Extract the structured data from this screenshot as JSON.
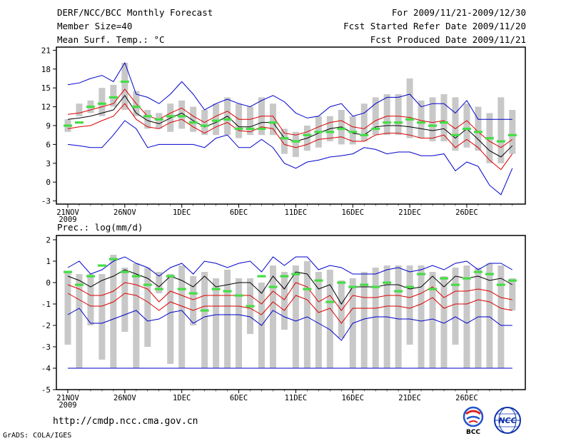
{
  "header": {
    "title": "DERF/NCC/BCC Monthly Forecast",
    "member_size": "Member Size=40",
    "variable": "Mean Surf. Temp.: °C",
    "period": "For 2009/11/21-2009/12/30",
    "fcst_started": "Fcst Started Refer Date 2009/11/20",
    "fcst_produced": "Fcst Produced Date 2009/11/21"
  },
  "footer": {
    "url": "http://cmdp.ncc.cma.gov.cn",
    "credit": "GrADS: COLA/IGES",
    "logo_left_text": "BCC",
    "logo_right_text": "NCC"
  },
  "colors": {
    "max_line": "#0000cc",
    "min_line": "#0000cc",
    "spread_line": "#dd0000",
    "mean_line": "#000000",
    "bar": "#c8c8c8",
    "marker": "#44dd44",
    "axis": "#000000",
    "threshold_line": "#0000cc"
  },
  "chart_data": [
    {
      "type": "line",
      "panel": "temperature",
      "title": "Mean Surf. Temp.: °C",
      "xlabel": "",
      "ylabel": "°C",
      "ylim": [
        -3.5,
        21.5
      ],
      "yticks": [
        -3,
        0,
        3,
        6,
        9,
        12,
        15,
        18,
        21
      ],
      "xticks": [
        {
          "day": 1,
          "label": "21NOV",
          "sublabel": "2009"
        },
        {
          "day": 6,
          "label": "26NOV"
        },
        {
          "day": 11,
          "label": "1DEC"
        },
        {
          "day": 16,
          "label": "6DEC"
        },
        {
          "day": 21,
          "label": "11DEC"
        },
        {
          "day": 26,
          "label": "16DEC"
        },
        {
          "day": 31,
          "label": "21DEC"
        },
        {
          "day": 36,
          "label": "26DEC"
        }
      ],
      "days": [
        1,
        2,
        3,
        4,
        5,
        6,
        7,
        8,
        9,
        10,
        11,
        12,
        13,
        14,
        15,
        16,
        17,
        18,
        19,
        20,
        21,
        22,
        23,
        24,
        25,
        26,
        27,
        28,
        29,
        30,
        31,
        32,
        33,
        34,
        35,
        36,
        37,
        38,
        39,
        40
      ],
      "series": [
        {
          "name": "max",
          "values": [
            15.5,
            15.8,
            16.5,
            17.0,
            16.0,
            19.0,
            14.0,
            13.5,
            12.5,
            14.0,
            16.0,
            14.0,
            11.5,
            12.5,
            13.2,
            12.5,
            12.0,
            13.0,
            13.8,
            12.8,
            11.0,
            10.2,
            10.5,
            12.0,
            12.5,
            10.5,
            11.0,
            12.5,
            13.5,
            13.5,
            14.0,
            12.0,
            12.5,
            12.5,
            11.0,
            13.0,
            10.0,
            10.0,
            10.0,
            10.0
          ]
        },
        {
          "name": "upper",
          "values": [
            10.8,
            11.0,
            11.5,
            12.0,
            12.5,
            14.8,
            12.5,
            10.5,
            10.0,
            11.0,
            11.8,
            10.5,
            9.5,
            10.5,
            11.3,
            10.0,
            10.0,
            10.5,
            10.5,
            7.8,
            7.5,
            8.0,
            8.8,
            9.5,
            9.8,
            8.8,
            8.5,
            9.8,
            10.5,
            10.5,
            10.3,
            9.8,
            9.5,
            9.8,
            8.5,
            9.8,
            8.0,
            6.5,
            5.5,
            6.8
          ]
        },
        {
          "name": "mean",
          "values": [
            10.0,
            10.2,
            10.5,
            11.0,
            11.5,
            13.8,
            11.0,
            9.8,
            9.3,
            10.2,
            11.0,
            9.8,
            8.8,
            9.5,
            10.5,
            8.8,
            8.8,
            9.5,
            9.5,
            7.0,
            6.5,
            7.0,
            7.8,
            8.5,
            8.8,
            7.8,
            7.5,
            8.8,
            9.0,
            9.0,
            8.8,
            8.5,
            8.2,
            8.5,
            7.0,
            8.5,
            6.8,
            5.0,
            4.0,
            5.8
          ]
        },
        {
          "name": "lower",
          "values": [
            8.5,
            8.8,
            9.0,
            9.8,
            10.5,
            12.5,
            10.0,
            8.8,
            8.5,
            9.5,
            10.0,
            8.8,
            7.8,
            8.8,
            9.5,
            8.2,
            8.0,
            8.8,
            8.5,
            6.0,
            5.5,
            6.0,
            6.8,
            7.0,
            7.2,
            6.5,
            6.5,
            7.5,
            7.8,
            7.8,
            7.5,
            7.0,
            7.0,
            7.5,
            5.5,
            6.8,
            5.5,
            3.5,
            2.0,
            4.5
          ]
        },
        {
          "name": "min",
          "values": [
            6.0,
            5.8,
            5.5,
            5.5,
            7.5,
            9.8,
            8.5,
            5.5,
            6.0,
            6.0,
            6.0,
            6.0,
            5.5,
            7.0,
            7.5,
            5.5,
            5.5,
            6.8,
            5.5,
            3.0,
            2.2,
            3.2,
            3.5,
            4.0,
            4.2,
            4.5,
            5.5,
            5.2,
            4.5,
            4.8,
            4.8,
            4.2,
            4.2,
            4.5,
            1.8,
            3.2,
            2.5,
            -0.5,
            -2.0,
            2.2
          ]
        }
      ],
      "boxes": [
        [
          8.0,
          10.0
        ],
        [
          10.5,
          12.5
        ],
        [
          11.0,
          13.0
        ],
        [
          10.5,
          15.0
        ],
        [
          12.0,
          15.5
        ],
        [
          11.5,
          19.0
        ],
        [
          10.5,
          14.5
        ],
        [
          8.5,
          11.5
        ],
        [
          8.5,
          11.0
        ],
        [
          8.0,
          12.5
        ],
        [
          8.5,
          13.0
        ],
        [
          8.0,
          12.0
        ],
        [
          7.5,
          11.5
        ],
        [
          7.5,
          12.5
        ],
        [
          7.5,
          13.5
        ],
        [
          7.0,
          12.5
        ],
        [
          7.5,
          12.0
        ],
        [
          7.5,
          13.5
        ],
        [
          7.5,
          12.5
        ],
        [
          4.5,
          8.5
        ],
        [
          4.0,
          8.0
        ],
        [
          5.0,
          9.0
        ],
        [
          5.5,
          10.5
        ],
        [
          6.5,
          10.5
        ],
        [
          6.0,
          11.5
        ],
        [
          6.0,
          10.5
        ],
        [
          6.5,
          12.5
        ],
        [
          7.5,
          13.5
        ],
        [
          7.5,
          14.0
        ],
        [
          7.5,
          14.0
        ],
        [
          7.0,
          16.5
        ],
        [
          7.0,
          13.0
        ],
        [
          6.5,
          13.5
        ],
        [
          6.5,
          14.0
        ],
        [
          5.0,
          13.5
        ],
        [
          5.5,
          12.5
        ],
        [
          5.0,
          12.0
        ],
        [
          3.0,
          11.0
        ],
        [
          3.0,
          13.5
        ],
        [
          4.5,
          11.5
        ]
      ],
      "markers": [
        9.0,
        9.5,
        12.0,
        12.5,
        13.5,
        16.0,
        12.0,
        10.5,
        10.0,
        10.5,
        10.5,
        9.5,
        9.0,
        9.8,
        10.0,
        8.5,
        8.5,
        8.5,
        9.5,
        7.0,
        6.5,
        7.5,
        8.0,
        8.0,
        8.5,
        8.0,
        7.5,
        8.5,
        9.5,
        9.5,
        10.0,
        9.5,
        9.0,
        9.5,
        7.5,
        8.5,
        8.0,
        7.0,
        6.5,
        7.5
      ]
    },
    {
      "type": "line",
      "panel": "precipitation",
      "title": "Prec.: log(mm/d)",
      "xlabel": "",
      "ylabel": "log(mm/d)",
      "ylim": [
        -5,
        2.2
      ],
      "yticks": [
        -5,
        -4,
        -3,
        -2,
        -1,
        0,
        1,
        2
      ],
      "threshold": -4,
      "xticks": [
        {
          "day": 1,
          "label": "21NOV",
          "sublabel": "2009"
        },
        {
          "day": 6,
          "label": "26NOV"
        },
        {
          "day": 11,
          "label": "1DEC"
        },
        {
          "day": 16,
          "label": "6DEC"
        },
        {
          "day": 21,
          "label": "11DEC"
        },
        {
          "day": 26,
          "label": "16DEC"
        },
        {
          "day": 31,
          "label": "21DEC"
        },
        {
          "day": 36,
          "label": "26DEC"
        }
      ],
      "days": [
        1,
        2,
        3,
        4,
        5,
        6,
        7,
        8,
        9,
        10,
        11,
        12,
        13,
        14,
        15,
        16,
        17,
        18,
        19,
        20,
        21,
        22,
        23,
        24,
        25,
        26,
        27,
        28,
        29,
        30,
        31,
        32,
        33,
        34,
        35,
        36,
        37,
        38,
        39,
        40
      ],
      "series": [
        {
          "name": "max",
          "values": [
            0.7,
            1.0,
            0.4,
            0.6,
            1.0,
            1.2,
            0.9,
            0.7,
            0.3,
            0.7,
            0.9,
            0.4,
            1.0,
            0.9,
            0.7,
            0.9,
            1.0,
            0.5,
            1.2,
            0.8,
            1.2,
            1.2,
            0.6,
            0.8,
            0.7,
            0.4,
            0.4,
            0.4,
            0.6,
            0.7,
            0.5,
            0.6,
            0.8,
            0.6,
            0.9,
            1.0,
            0.6,
            0.9,
            0.9,
            0.6
          ]
        },
        {
          "name": "mean",
          "values": [
            0.3,
            0.1,
            -0.2,
            0.1,
            0.3,
            0.6,
            0.4,
            0.2,
            -0.2,
            0.3,
            0.1,
            -0.2,
            0.3,
            -0.2,
            -0.1,
            0.0,
            0.0,
            -0.5,
            0.3,
            -0.3,
            0.5,
            0.4,
            -0.3,
            -0.1,
            -1.0,
            -0.2,
            -0.2,
            -0.2,
            -0.1,
            -0.1,
            -0.3,
            -0.2,
            0.3,
            -0.2,
            0.3,
            0.2,
            0.3,
            0.1,
            0.2,
            -0.1
          ]
        },
        {
          "name": "upper",
          "values": [
            -0.1,
            -0.3,
            -0.6,
            -0.6,
            -0.4,
            0.0,
            -0.1,
            -0.3,
            -0.9,
            -0.4,
            -0.6,
            -0.8,
            -0.6,
            -0.6,
            -0.6,
            -0.6,
            -0.6,
            -1.0,
            -0.4,
            -0.8,
            0.0,
            -0.2,
            -0.9,
            -0.6,
            -1.3,
            -0.6,
            -0.7,
            -0.7,
            -0.6,
            -0.6,
            -0.7,
            -0.5,
            -0.2,
            -0.7,
            -0.4,
            -0.4,
            -0.3,
            -0.4,
            -0.7,
            -0.8
          ]
        },
        {
          "name": "lower",
          "values": [
            -0.5,
            -0.8,
            -1.1,
            -1.1,
            -0.9,
            -0.5,
            -0.6,
            -0.9,
            -1.3,
            -0.9,
            -1.1,
            -1.3,
            -1.1,
            -1.1,
            -1.1,
            -1.1,
            -1.2,
            -1.5,
            -0.9,
            -1.3,
            -0.6,
            -0.8,
            -1.4,
            -1.2,
            -1.9,
            -1.2,
            -1.2,
            -1.2,
            -1.1,
            -1.1,
            -1.2,
            -1.0,
            -0.7,
            -1.2,
            -1.0,
            -1.0,
            -0.8,
            -0.9,
            -1.2,
            -1.3
          ]
        },
        {
          "name": "min",
          "values": [
            -1.5,
            -1.2,
            -1.9,
            -1.9,
            -1.7,
            -1.5,
            -1.3,
            -1.8,
            -1.7,
            -1.4,
            -1.3,
            -1.9,
            -1.6,
            -1.5,
            -1.5,
            -1.5,
            -1.6,
            -2.0,
            -1.3,
            -1.6,
            -1.8,
            -1.6,
            -1.9,
            -2.2,
            -2.7,
            -1.9,
            -1.7,
            -1.6,
            -1.6,
            -1.7,
            -1.7,
            -1.8,
            -1.7,
            -1.9,
            -1.6,
            -1.9,
            -1.6,
            -1.6,
            -2.0,
            -2.0
          ]
        }
      ],
      "boxes": [
        [
          -2.9,
          0.5
        ],
        [
          -4.0,
          0.4
        ],
        [
          -2.0,
          0.4
        ],
        [
          -3.6,
          0.4
        ],
        [
          -4.0,
          1.3
        ],
        [
          -2.3,
          0.7
        ],
        [
          -4.0,
          0.9
        ],
        [
          -3.0,
          0.7
        ],
        [
          -0.5,
          0.5
        ],
        [
          -3.8,
          0.4
        ],
        [
          -4.0,
          0.8
        ],
        [
          -2.0,
          0.3
        ],
        [
          -4.0,
          0.5
        ],
        [
          -4.0,
          0.2
        ],
        [
          -4.0,
          0.6
        ],
        [
          -4.0,
          0.2
        ],
        [
          -2.4,
          0.2
        ],
        [
          -4.0,
          0.0
        ],
        [
          -4.0,
          0.8
        ],
        [
          -2.2,
          0.5
        ],
        [
          -4.0,
          0.8
        ],
        [
          -4.0,
          1.0
        ],
        [
          -4.0,
          0.5
        ],
        [
          -4.0,
          0.6
        ],
        [
          -2.6,
          0.1
        ],
        [
          -4.0,
          0.2
        ],
        [
          -4.0,
          0.5
        ],
        [
          -4.0,
          0.7
        ],
        [
          -4.0,
          0.8
        ],
        [
          -4.0,
          0.8
        ],
        [
          -2.9,
          0.8
        ],
        [
          -4.0,
          0.8
        ],
        [
          -4.0,
          0.5
        ],
        [
          -4.0,
          0.3
        ],
        [
          -2.9,
          0.7
        ],
        [
          -4.0,
          0.8
        ],
        [
          -4.0,
          0.7
        ],
        [
          -4.0,
          0.9
        ],
        [
          -4.0,
          0.8
        ],
        [
          -1.3,
          0.2
        ]
      ],
      "markers": [
        0.5,
        -0.1,
        0.3,
        0.8,
        1.1,
        0.5,
        0.3,
        -0.1,
        -0.3,
        0.3,
        -0.3,
        -0.5,
        -1.3,
        -0.3,
        -0.4,
        -0.6,
        -1.1,
        0.3,
        -0.2,
        0.3,
        0.4,
        -0.3,
        0.1,
        -0.9,
        0.0,
        -0.2,
        -0.1,
        -0.2,
        0.0,
        -0.4,
        -0.2,
        0.4,
        -0.3,
        0.2,
        -0.1,
        0.2,
        0.5,
        0.4,
        -0.1,
        0.1
      ]
    }
  ]
}
